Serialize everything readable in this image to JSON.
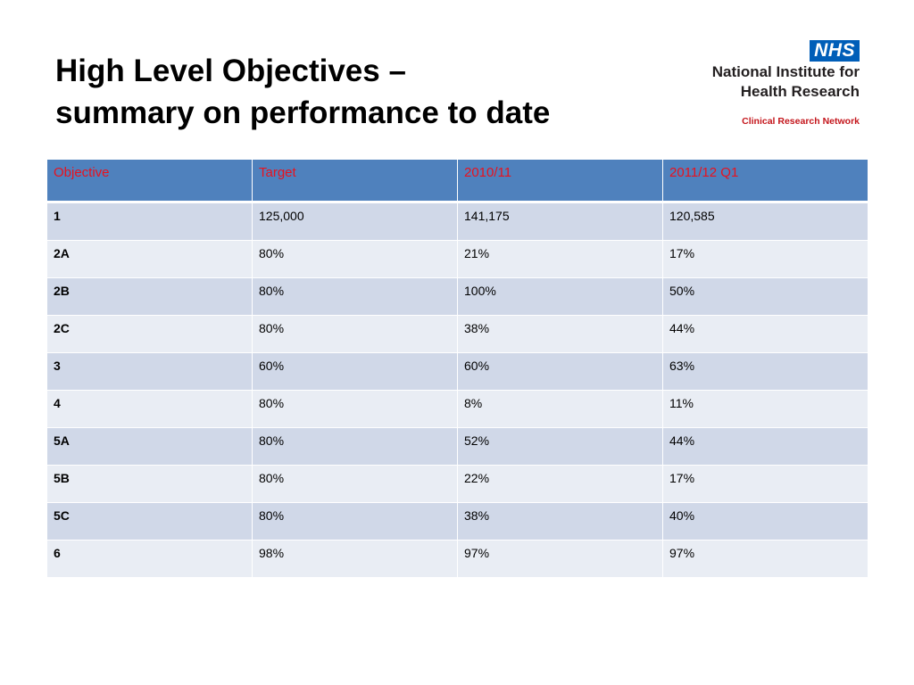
{
  "title": {
    "line1": "High Level Objectives –",
    "line2": "summary on performance to date"
  },
  "logo": {
    "badge": "NHS",
    "line1": "National Institute for",
    "line2": "Health Research",
    "line3": "Clinical Research Network"
  },
  "table": {
    "headers": [
      "Objective",
      "Target",
      "2010/11",
      "2011/12 Q1"
    ],
    "rows": [
      [
        "1",
        "125,000",
        "141,175",
        "120,585"
      ],
      [
        "2A",
        "80%",
        "21%",
        "17%"
      ],
      [
        "2B",
        "80%",
        "100%",
        "50%"
      ],
      [
        "2C",
        "80%",
        "38%",
        "44%"
      ],
      [
        "3",
        "60%",
        "60%",
        "63%"
      ],
      [
        "4",
        "80%",
        "8%",
        "11%"
      ],
      [
        "5A",
        "80%",
        "52%",
        "44%"
      ],
      [
        "5B",
        "80%",
        "22%",
        "17%"
      ],
      [
        "5C",
        "80%",
        "38%",
        "40%"
      ],
      [
        "6",
        "98%",
        "97%",
        "97%"
      ]
    ]
  },
  "colors": {
    "header_bg": "#4f81bd",
    "header_text": "#e8121e",
    "row_odd": "#d0d8e8",
    "row_even": "#e9edf4",
    "nhs_blue": "#005eb8",
    "crn_red": "#c4161c"
  }
}
